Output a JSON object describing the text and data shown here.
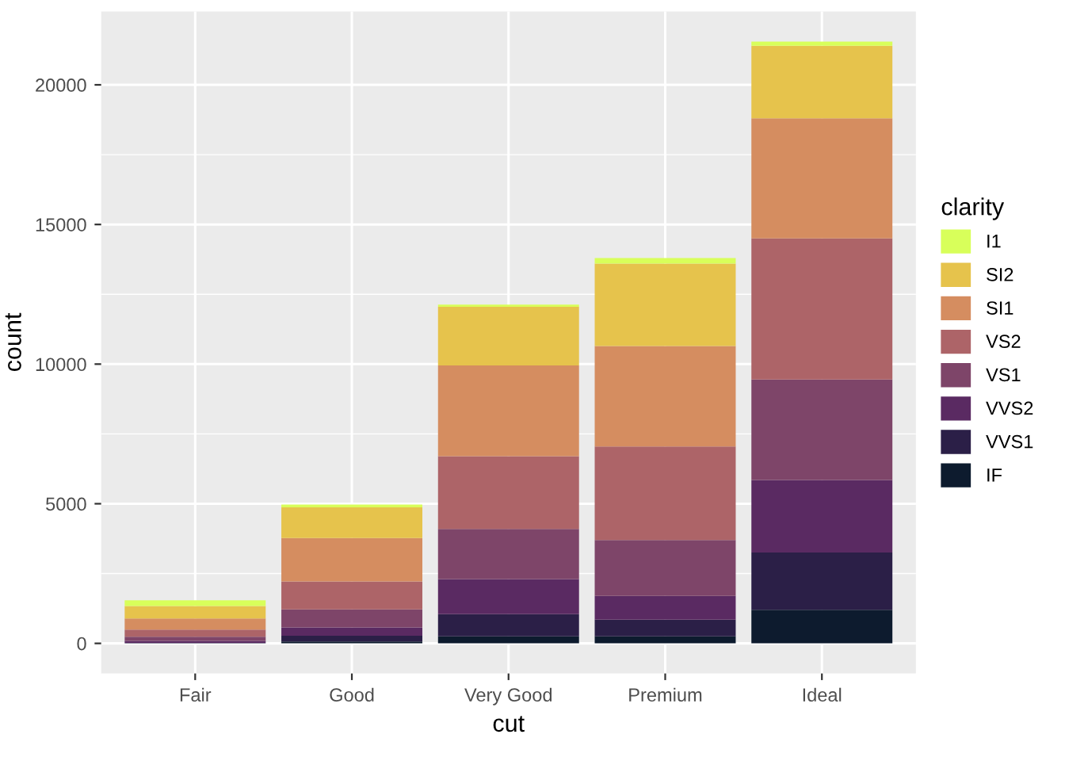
{
  "chart_data": {
    "type": "bar",
    "stacked": true,
    "xlabel": "cut",
    "ylabel": "count",
    "legend_title": "clarity",
    "legend": "right",
    "grid": true,
    "categories": [
      "Fair",
      "Good",
      "Very Good",
      "Premium",
      "Ideal"
    ],
    "ylim": [
      -1078,
      22629
    ],
    "yticks": [
      0,
      5000,
      10000,
      15000,
      20000
    ],
    "series": [
      {
        "name": "IF",
        "color": "#0d1b2e",
        "values": [
          null,
          70,
          250,
          250,
          1200
        ]
      },
      {
        "name": "VVS1",
        "color": "#2b1f47",
        "values": [
          20,
          200,
          800,
          600,
          2050
        ]
      },
      {
        "name": "VVS2",
        "color": "#5a2a62",
        "values": [
          70,
          300,
          1250,
          850,
          2600
        ]
      },
      {
        "name": "VS1",
        "color": "#7e4569",
        "values": [
          150,
          650,
          1800,
          2000,
          3600
        ]
      },
      {
        "name": "VS2",
        "color": "#ad6468",
        "values": [
          250,
          1000,
          2600,
          3350,
          5050
        ]
      },
      {
        "name": "SI1",
        "color": "#d58d60",
        "values": [
          400,
          1550,
          3250,
          3600,
          4300
        ]
      },
      {
        "name": "SI2",
        "color": "#e6c34c",
        "values": [
          450,
          1100,
          2100,
          2950,
          2600
        ]
      },
      {
        "name": "I1",
        "color": "#d8ff5a",
        "values": [
          200,
          100,
          80,
          200,
          150
        ]
      }
    ]
  }
}
